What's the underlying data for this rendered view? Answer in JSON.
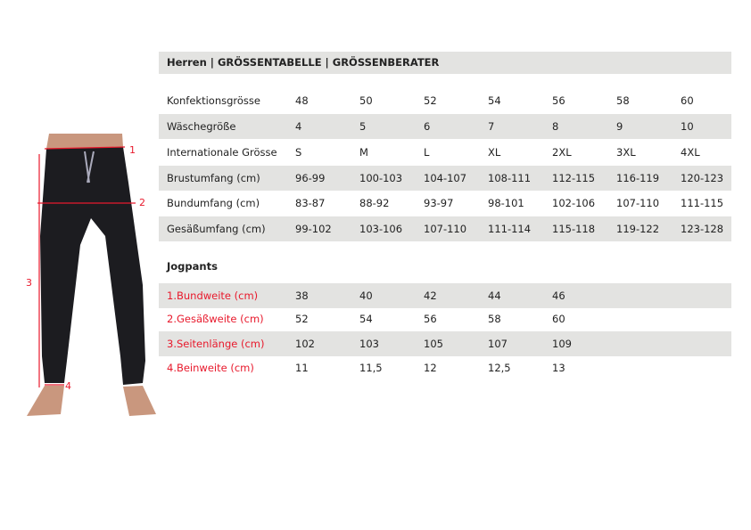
{
  "header": {
    "title": "Herren  |  GRÖSSENTABELLE  |  GRÖSSENBERATER"
  },
  "size_table": {
    "rows": [
      {
        "label": "Konfektionsgrösse",
        "values": [
          "48",
          "50",
          "52",
          "54",
          "56",
          "58",
          "60"
        ]
      },
      {
        "label": "Wäschegröße",
        "values": [
          "4",
          "5",
          "6",
          "7",
          "8",
          "9",
          "10"
        ]
      },
      {
        "label": "Internationale Grösse",
        "values": [
          "S",
          "M",
          "L",
          "XL",
          "2XL",
          "3XL",
          "4XL"
        ]
      },
      {
        "label": "Brustumfang (cm)",
        "values": [
          "96-99",
          "100-103",
          "104-107",
          "108-111",
          "112-115",
          "116-119",
          "120-123"
        ]
      },
      {
        "label": "Bundumfang (cm)",
        "values": [
          "83-87",
          "88-92",
          "93-97",
          "98-101",
          "102-106",
          "107-110",
          "111-115"
        ]
      },
      {
        "label": "Gesäßumfang (cm)",
        "values": [
          "99-102",
          "103-106",
          "107-110",
          "111-114",
          "115-118",
          "119-122",
          "123-128"
        ]
      }
    ]
  },
  "jogpants": {
    "title": "Jogpants",
    "rows": [
      {
        "label": "1.Bundweite (cm)",
        "values": [
          "38",
          "40",
          "42",
          "44",
          "46"
        ]
      },
      {
        "label": "2.Gesäßweite (cm)",
        "values": [
          "52",
          "54",
          "56",
          "58",
          "60"
        ]
      },
      {
        "label": "3.Seitenlänge (cm)",
        "values": [
          "102",
          "103",
          "105",
          "107",
          "109"
        ]
      },
      {
        "label": "4.Beinweite (cm)",
        "values": [
          "11",
          "11,5",
          "12",
          "12,5",
          "13"
        ]
      }
    ]
  },
  "diagram": {
    "markers": [
      "1",
      "2",
      "3",
      "4"
    ],
    "accent": "#e8192c"
  }
}
